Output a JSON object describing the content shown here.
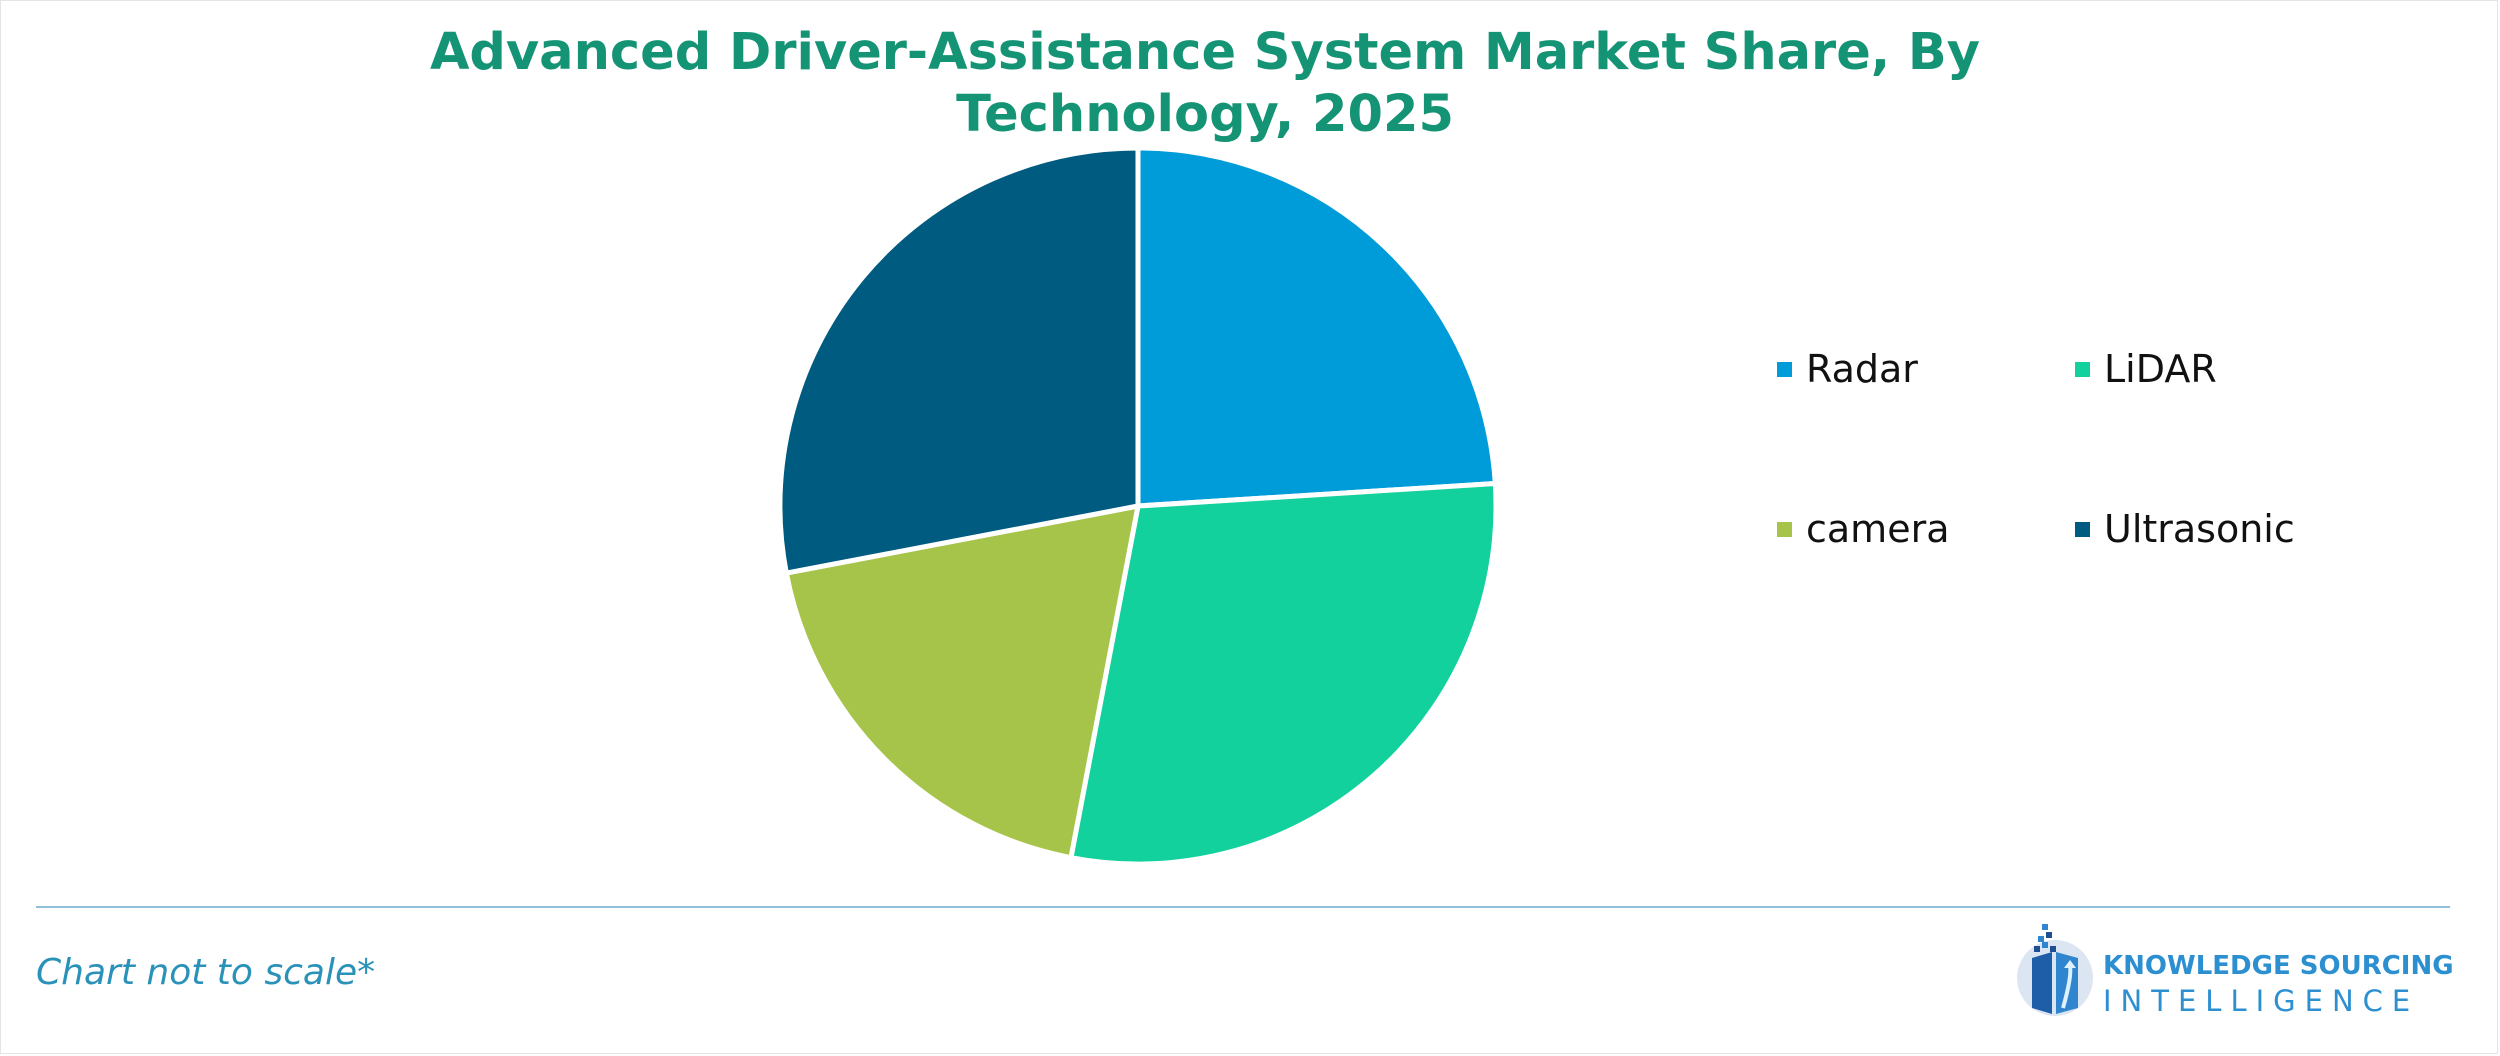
{
  "chart_data": {
    "type": "pie",
    "title": "Advanced Driver-Assistance System Market Share, By Technology, 2025",
    "categories": [
      "Radar",
      "LiDAR",
      "camera",
      "Ultrasonic"
    ],
    "values": [
      24,
      29,
      19,
      28
    ],
    "colors": [
      "#009bd9",
      "#12d19c",
      "#a7c44a",
      "#005b80"
    ],
    "legend": "right",
    "data_labels": false
  },
  "footnote": "Chart not to scale*",
  "logo": {
    "line1": "KNOWLEDGE SOURCING",
    "line2": "INTELLIGENCE",
    "color": "#2c8fd0"
  }
}
